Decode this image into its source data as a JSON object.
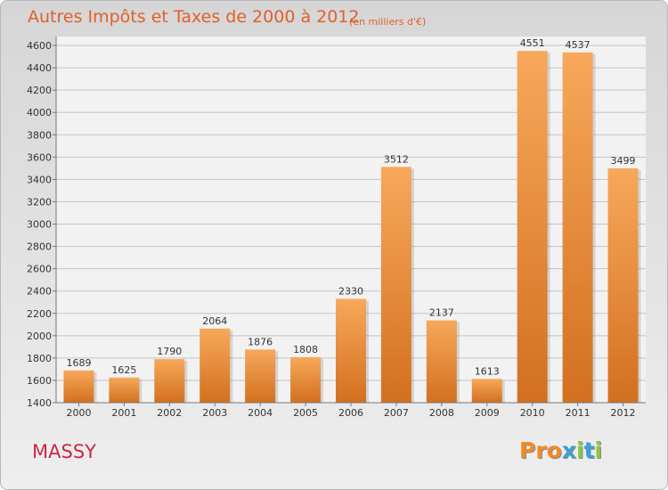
{
  "header": {
    "title": "Autres Impôts et Taxes de 2000 à 2012",
    "subtitle": "(en milliers d'€)"
  },
  "footer": {
    "city": "MASSY",
    "logo_text": "Proxiti"
  },
  "colors": {
    "title": "#e0602a",
    "city": "#c8284a",
    "bar_top": "#f7a85a",
    "bar_bottom": "#d2701f",
    "grid": "#c4c4c4"
  },
  "chart_data": {
    "type": "bar",
    "title": "Autres Impôts et Taxes de 2000 à 2012",
    "subtitle": "(en milliers d'€)",
    "categories": [
      "2000",
      "2001",
      "2002",
      "2003",
      "2004",
      "2005",
      "2006",
      "2007",
      "2008",
      "2009",
      "2010",
      "2011",
      "2012"
    ],
    "values": [
      1689,
      1625,
      1790,
      2064,
      1876,
      1808,
      2330,
      3512,
      2137,
      1613,
      4551,
      4537,
      3499
    ],
    "ylim": [
      1400,
      4600
    ],
    "yticks": [
      1400,
      1600,
      1800,
      2000,
      2200,
      2400,
      2600,
      2800,
      3000,
      3200,
      3400,
      3600,
      3800,
      4000,
      4200,
      4400,
      4600
    ],
    "grid": true,
    "xlabel": "",
    "ylabel": ""
  }
}
